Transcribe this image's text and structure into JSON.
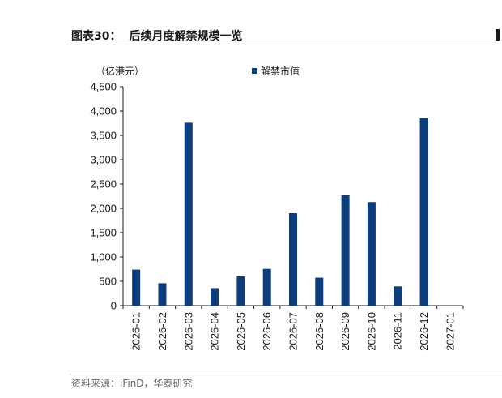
{
  "header": {
    "figure_no": "图表30：",
    "title": "后续月度解禁规模一览"
  },
  "footer": {
    "source": "资料来源：iFinD，华泰研究"
  },
  "chart_data": {
    "type": "bar",
    "unit_label": "（亿港元）",
    "legend": {
      "position": "top-center",
      "entries": [
        "解禁市值"
      ]
    },
    "series": [
      {
        "name": "解禁市值",
        "color": "#0c3e7e",
        "values": [
          740,
          460,
          3760,
          360,
          600,
          755,
          1900,
          575,
          2270,
          2130,
          395,
          3850,
          0
        ]
      }
    ],
    "categories": [
      "2026-01",
      "2026-02",
      "2026-03",
      "2026-04",
      "2026-05",
      "2026-06",
      "2026-07",
      "2026-08",
      "2026-09",
      "2026-10",
      "2026-11",
      "2026-12",
      "2027-01"
    ],
    "ylim": [
      0,
      4500
    ],
    "yticks": [
      "0",
      "500",
      "1,000",
      "1,500",
      "2,000",
      "2,500",
      "3,000",
      "3,500",
      "4,000",
      "4,500"
    ],
    "ytick_values": [
      0,
      500,
      1000,
      1500,
      2000,
      2500,
      3000,
      3500,
      4000,
      4500
    ],
    "grid": false
  }
}
